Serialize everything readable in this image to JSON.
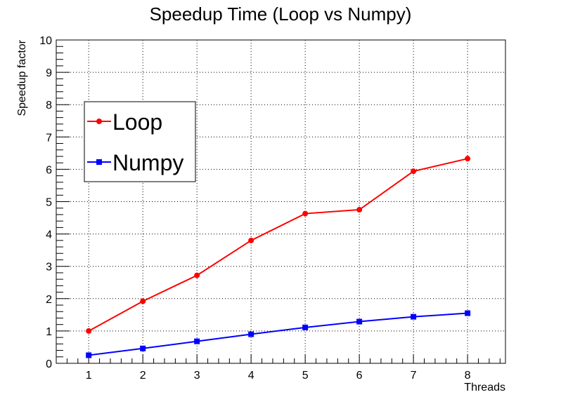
{
  "chart_data": {
    "type": "line",
    "title": "Speedup Time (Loop vs Numpy)",
    "xlabel": "Threads",
    "ylabel": "Speedup factor",
    "xlim": [
      0.4,
      8.7
    ],
    "ylim": [
      0,
      10
    ],
    "x_ticks": [
      1,
      2,
      3,
      4,
      5,
      6,
      7,
      8
    ],
    "y_ticks": [
      0,
      1,
      2,
      3,
      4,
      5,
      6,
      7,
      8,
      9,
      10
    ],
    "grid": true,
    "legend_position": "upper-left",
    "series": [
      {
        "name": "Loop",
        "color": "#ff0000",
        "marker": "circle",
        "x": [
          1,
          2,
          3,
          4,
          5,
          6,
          7,
          8
        ],
        "values": [
          1.0,
          1.92,
          2.72,
          3.8,
          4.63,
          4.75,
          5.94,
          6.33
        ]
      },
      {
        "name": "Numpy",
        "color": "#0000ff",
        "marker": "square",
        "x": [
          1,
          2,
          3,
          4,
          5,
          6,
          7,
          8
        ],
        "values": [
          0.25,
          0.46,
          0.68,
          0.9,
          1.11,
          1.29,
          1.44,
          1.55
        ]
      }
    ]
  }
}
